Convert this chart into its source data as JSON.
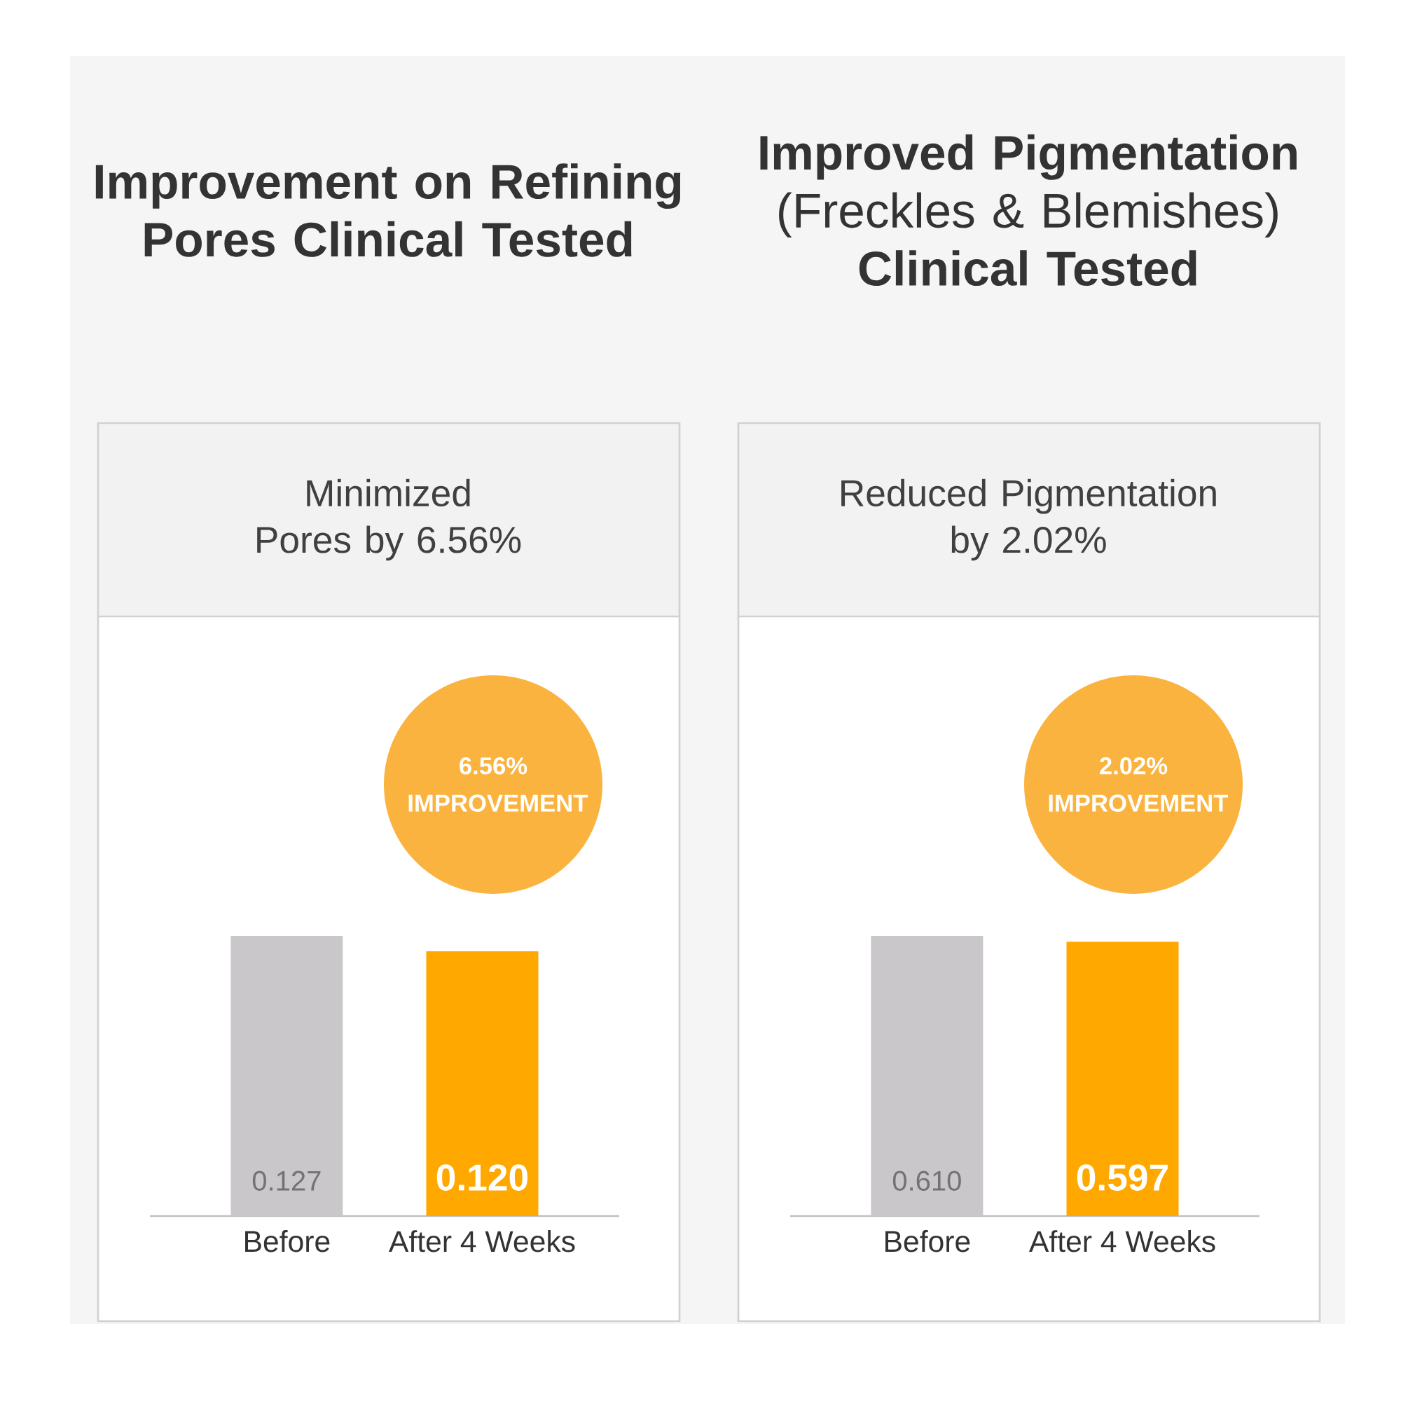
{
  "chart_data": [
    {
      "type": "bar",
      "title": "**Improvement on Refining Pores Clinical Tested**",
      "subtitle": "Minimized Pores by 6.56%",
      "categories": [
        "Before",
        "After 4 Weeks"
      ],
      "values": [
        0.127,
        0.12
      ],
      "value_labels": [
        "0.127",
        "0.120"
      ],
      "colors": [
        "#c9c7c9",
        "#ffa800"
      ],
      "tick_labels": "x",
      "annotations": [
        "6.56% IMPROVEMENT"
      ]
    },
    {
      "type": "bar",
      "title": "**Improved Pigmentation** (Freckles & Blemishes) **Clinical Tested**",
      "subtitle": "Reduced Pigmentation by 2.02%",
      "categories": [
        "Before",
        "After 4 Weeks"
      ],
      "values": [
        0.61,
        0.597
      ],
      "value_labels": [
        "0.610",
        "0.597"
      ],
      "colors": [
        "#c9c7c9",
        "#ffa800"
      ],
      "tick_labels": "x",
      "annotations": [
        "2.02% IMPROVEMENT"
      ]
    }
  ]
}
